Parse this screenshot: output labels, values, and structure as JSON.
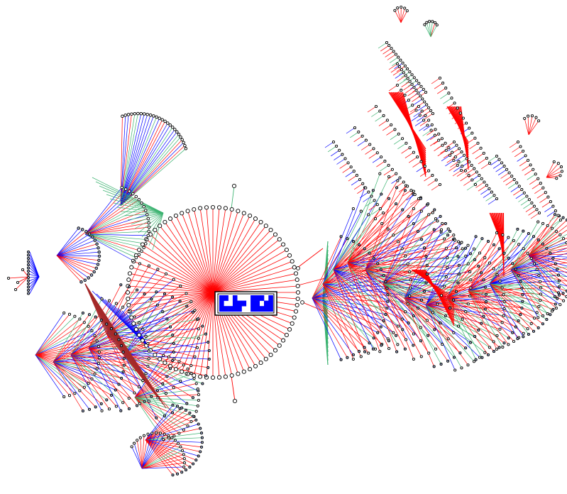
{
  "diagram": {
    "type": "radial-tree",
    "root_symbol": {
      "grid": [
        [
          1,
          1,
          0,
          1,
          0,
          0,
          0,
          1,
          1,
          1,
          0,
          1
        ],
        [
          1,
          0,
          0,
          1,
          1,
          1,
          0,
          1,
          1,
          0,
          1,
          1
        ],
        [
          1,
          1,
          1,
          1,
          1,
          0,
          0,
          1,
          1,
          1,
          1,
          1
        ]
      ]
    },
    "palette": {
      "red": "#ff0000",
      "green": "#3cb371",
      "blue": "#0000ff",
      "node_stroke": "#000000",
      "node_fill": "#ffffff",
      "leaf_fill": "#9aa7c8",
      "symbol_blue": "#0000ff"
    },
    "clusters": [
      {
        "name": "upper-left-fan",
        "edge_color": "green"
      },
      {
        "name": "lower-left-fan",
        "edge_color": "red"
      },
      {
        "name": "central-ring",
        "edge_color": "red"
      },
      {
        "name": "right-fan",
        "edge_color": "red"
      }
    ]
  }
}
